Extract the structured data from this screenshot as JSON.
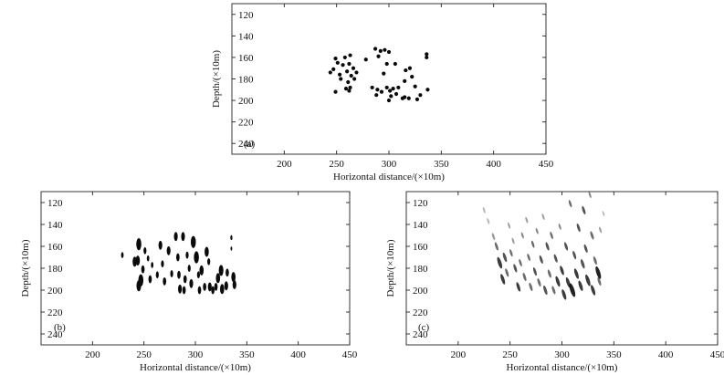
{
  "chart_data": [
    {
      "type": "scatter",
      "panel_label": "(a)",
      "xlabel": "Horizontal distance/(×10m)",
      "ylabel": "Depth/(×10m)",
      "xlim": [
        150,
        450
      ],
      "ylim": [
        250,
        110
      ],
      "y_inverted": true,
      "xticks": [
        200,
        250,
        300,
        350,
        400,
        450
      ],
      "yticks": [
        120,
        140,
        160,
        180,
        200,
        220,
        240
      ],
      "grid": false,
      "legend": "none",
      "mark_style": "round-dot",
      "points": [
        [
          244,
          174
        ],
        [
          247,
          171
        ],
        [
          249,
          161
        ],
        [
          249,
          192
        ],
        [
          251,
          165
        ],
        [
          253,
          176
        ],
        [
          254,
          180
        ],
        [
          256,
          167
        ],
        [
          258,
          160
        ],
        [
          259,
          189
        ],
        [
          260,
          173
        ],
        [
          261,
          183
        ],
        [
          262,
          166
        ],
        [
          262,
          191
        ],
        [
          263,
          158
        ],
        [
          263,
          188
        ],
        [
          264,
          177
        ],
        [
          266,
          170
        ],
        [
          267,
          180
        ],
        [
          269,
          174
        ],
        [
          278,
          162
        ],
        [
          284,
          188
        ],
        [
          287,
          152
        ],
        [
          288,
          195
        ],
        [
          289,
          190
        ],
        [
          290,
          159
        ],
        [
          292,
          154
        ],
        [
          293,
          192
        ],
        [
          295,
          175
        ],
        [
          296,
          153
        ],
        [
          298,
          188
        ],
        [
          298,
          166
        ],
        [
          300,
          155
        ],
        [
          300,
          200
        ],
        [
          301,
          191
        ],
        [
          302,
          196
        ],
        [
          304,
          189
        ],
        [
          306,
          166
        ],
        [
          307,
          194
        ],
        [
          309,
          188
        ],
        [
          313,
          198
        ],
        [
          315,
          197
        ],
        [
          315,
          182
        ],
        [
          316,
          172
        ],
        [
          319,
          198
        ],
        [
          320,
          170
        ],
        [
          322,
          178
        ],
        [
          325,
          187
        ],
        [
          327,
          199
        ],
        [
          330,
          195
        ],
        [
          336,
          157
        ],
        [
          336,
          160
        ],
        [
          337,
          190
        ]
      ]
    },
    {
      "type": "scatter",
      "panel_label": "(b)",
      "xlabel": "Horizontal distance/(×10m)",
      "ylabel": "Depth/(×10m)",
      "xlim": [
        150,
        450
      ],
      "ylim": [
        250,
        110
      ],
      "y_inverted": true,
      "xticks": [
        200,
        250,
        300,
        350,
        400,
        450
      ],
      "yticks": [
        120,
        140,
        160,
        180,
        200,
        220,
        240
      ],
      "grid": false,
      "legend": "none",
      "mark_style": "vertical-blob",
      "points": [
        [
          229,
          168,
          0.6
        ],
        [
          241,
          174,
          1.0
        ],
        [
          244,
          173,
          1.0
        ],
        [
          245,
          158,
          1.2
        ],
        [
          245,
          196,
          1.1
        ],
        [
          247,
          191,
          1.2
        ],
        [
          249,
          181,
          0.8
        ],
        [
          251,
          164,
          0.7
        ],
        [
          254,
          171,
          0.6
        ],
        [
          256,
          190,
          0.8
        ],
        [
          258,
          177,
          0.6
        ],
        [
          263,
          186,
          0.7
        ],
        [
          266,
          159,
          0.9
        ],
        [
          268,
          176,
          0.7
        ],
        [
          270,
          192,
          0.8
        ],
        [
          274,
          164,
          0.9
        ],
        [
          277,
          185,
          0.7
        ],
        [
          281,
          151,
          0.9
        ],
        [
          283,
          170,
          0.8
        ],
        [
          284,
          186,
          0.8
        ],
        [
          285,
          199,
          0.9
        ],
        [
          288,
          151,
          0.9
        ],
        [
          289,
          200,
          0.8
        ],
        [
          290,
          190,
          0.8
        ],
        [
          292,
          168,
          0.7
        ],
        [
          294,
          180,
          0.7
        ],
        [
          296,
          194,
          0.9
        ],
        [
          298,
          156,
          1.2
        ],
        [
          301,
          170,
          1.2
        ],
        [
          303,
          186,
          0.7
        ],
        [
          304,
          200,
          0.8
        ],
        [
          306,
          182,
          1.0
        ],
        [
          309,
          197,
          0.8
        ],
        [
          311,
          165,
          1.0
        ],
        [
          313,
          174,
          0.7
        ],
        [
          314,
          197,
          0.9
        ],
        [
          317,
          200,
          0.8
        ],
        [
          320,
          197,
          0.8
        ],
        [
          322,
          189,
          1.0
        ],
        [
          325,
          182,
          1.1
        ],
        [
          326,
          199,
          1.0
        ],
        [
          330,
          196,
          0.9
        ],
        [
          331,
          184,
          0.8
        ],
        [
          335,
          152,
          0.5
        ],
        [
          335,
          162,
          0.4
        ],
        [
          337,
          188,
          1.0
        ],
        [
          338,
          195,
          0.9
        ]
      ]
    },
    {
      "type": "scatter",
      "panel_label": "(c)",
      "xlabel": "Horizontal distance/(×10m)",
      "ylabel": "Depth/(×10m)",
      "xlim": [
        150,
        450
      ],
      "ylim": [
        250,
        110
      ],
      "y_inverted": true,
      "xticks": [
        200,
        250,
        300,
        350,
        400,
        450
      ],
      "yticks": [
        120,
        140,
        160,
        180,
        200,
        220,
        240
      ],
      "grid": false,
      "legend": "none",
      "mark_style": "smeared-blob",
      "points": [
        [
          225,
          127,
          0.6,
          0.3
        ],
        [
          229,
          137,
          0.6,
          0.3
        ],
        [
          234,
          151,
          0.7,
          0.4
        ],
        [
          237,
          160,
          0.8,
          0.6
        ],
        [
          240,
          175,
          1.1,
          0.8
        ],
        [
          243,
          190,
          1.0,
          0.8
        ],
        [
          245,
          170,
          0.9,
          0.7
        ],
        [
          247,
          184,
          0.8,
          0.6
        ],
        [
          249,
          141,
          0.6,
          0.4
        ],
        [
          251,
          166,
          0.7,
          0.6
        ],
        [
          253,
          155,
          0.6,
          0.4
        ],
        [
          255,
          180,
          0.8,
          0.7
        ],
        [
          258,
          197,
          0.9,
          0.8
        ],
        [
          260,
          175,
          0.7,
          0.6
        ],
        [
          262,
          150,
          0.6,
          0.5
        ],
        [
          264,
          188,
          0.8,
          0.6
        ],
        [
          266,
          136,
          0.6,
          0.4
        ],
        [
          268,
          170,
          0.7,
          0.6
        ],
        [
          270,
          197,
          0.8,
          0.6
        ],
        [
          272,
          158,
          0.7,
          0.6
        ],
        [
          274,
          183,
          0.8,
          0.7
        ],
        [
          276,
          146,
          0.6,
          0.5
        ],
        [
          278,
          193,
          0.8,
          0.6
        ],
        [
          280,
          172,
          0.8,
          0.7
        ],
        [
          282,
          133,
          0.6,
          0.4
        ],
        [
          284,
          200,
          0.9,
          0.7
        ],
        [
          286,
          160,
          0.8,
          0.7
        ],
        [
          288,
          185,
          0.8,
          0.6
        ],
        [
          290,
          150,
          0.7,
          0.6
        ],
        [
          292,
          200,
          0.8,
          0.6
        ],
        [
          294,
          171,
          0.8,
          0.7
        ],
        [
          296,
          192,
          1.0,
          0.8
        ],
        [
          298,
          142,
          0.6,
          0.5
        ],
        [
          300,
          182,
          0.9,
          0.8
        ],
        [
          302,
          204,
          1.0,
          0.8
        ],
        [
          304,
          160,
          0.8,
          0.7
        ],
        [
          306,
          193,
          1.0,
          0.8
        ],
        [
          308,
          121,
          0.7,
          0.6
        ],
        [
          310,
          200,
          1.3,
          0.9
        ],
        [
          312,
          168,
          0.8,
          0.7
        ],
        [
          314,
          185,
          1.0,
          0.8
        ],
        [
          316,
          143,
          0.8,
          0.7
        ],
        [
          318,
          196,
          1.0,
          0.8
        ],
        [
          320,
          176,
          0.9,
          0.7
        ],
        [
          321,
          127,
          0.8,
          0.7
        ],
        [
          323,
          162,
          0.8,
          0.7
        ],
        [
          325,
          191,
          1.1,
          0.8
        ],
        [
          327,
          113,
          0.6,
          0.5
        ],
        [
          329,
          150,
          0.8,
          0.6
        ],
        [
          330,
          200,
          1.0,
          0.8
        ],
        [
          332,
          173,
          0.8,
          0.6
        ],
        [
          335,
          184,
          1.2,
          0.9
        ],
        [
          337,
          145,
          0.6,
          0.4
        ],
        [
          340,
          130,
          0.5,
          0.3
        ],
        [
          336,
          192,
          0.8,
          0.6
        ]
      ]
    }
  ]
}
